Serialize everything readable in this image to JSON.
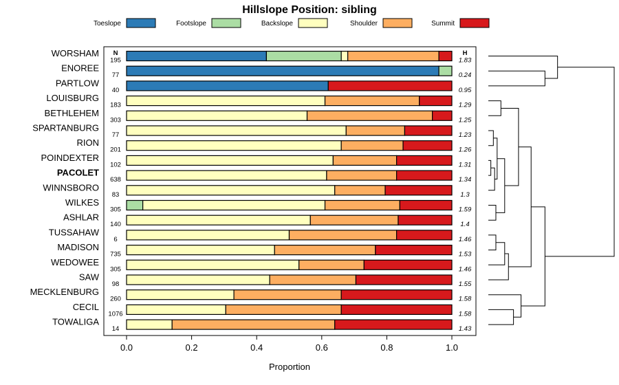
{
  "chart_data": {
    "type": "bar",
    "orientation": "horizontal",
    "stacked": true,
    "title": "Hillslope Position: sibling",
    "xlabel": "Proportion",
    "xlim": [
      0,
      1
    ],
    "xticks": [
      "0.0",
      "0.2",
      "0.4",
      "0.6",
      "0.8",
      "1.0"
    ],
    "n_header": "N",
    "h_header": "H",
    "highlight": "PACOLET",
    "legend": [
      {
        "name": "Toeslope",
        "color": "#2c7bb6"
      },
      {
        "name": "Footslope",
        "color": "#abdda4"
      },
      {
        "name": "Backslope",
        "color": "#ffffbf"
      },
      {
        "name": "Shoulder",
        "color": "#fdae61"
      },
      {
        "name": "Summit",
        "color": "#d7191c"
      }
    ],
    "categories": [
      "WORSHAM",
      "ENOREE",
      "PARTLOW",
      "LOUISBURG",
      "BETHLEHEM",
      "SPARTANBURG",
      "RION",
      "POINDEXTER",
      "PACOLET",
      "WINNSBORO",
      "WILKES",
      "ASHLAR",
      "TUSSAHAW",
      "MADISON",
      "WEDOWEE",
      "SAW",
      "MECKLENBURG",
      "CECIL",
      "TOWALIGA"
    ],
    "n": [
      "195",
      "77",
      "40",
      "183",
      "303",
      "77",
      "201",
      "102",
      "638",
      "83",
      "305",
      "140",
      "6",
      "735",
      "305",
      "98",
      "260",
      "1076",
      "14"
    ],
    "h": [
      "1.83",
      "0.24",
      "0.95",
      "1.29",
      "1.25",
      "1.23",
      "1.26",
      "1.31",
      "1.34",
      "1.3",
      "1.59",
      "1.4",
      "1.46",
      "1.53",
      "1.46",
      "1.55",
      "1.58",
      "1.58",
      "1.43"
    ],
    "series": [
      {
        "name": "Toeslope",
        "values": [
          0.43,
          0.96,
          0.62,
          0,
          0,
          0,
          0,
          0,
          0,
          0,
          0,
          0,
          0,
          0,
          0,
          0,
          0,
          0,
          0
        ]
      },
      {
        "name": "Footslope",
        "values": [
          0.23,
          0.04,
          0,
          0,
          0,
          0,
          0,
          0,
          0,
          0,
          0.05,
          0,
          0,
          0,
          0,
          0,
          0,
          0,
          0
        ]
      },
      {
        "name": "Backslope",
        "values": [
          0.02,
          0,
          0,
          0.61,
          0.555,
          0.675,
          0.66,
          0.635,
          0.615,
          0.64,
          0.56,
          0.565,
          0.5,
          0.455,
          0.53,
          0.44,
          0.33,
          0.305,
          0.14
        ]
      },
      {
        "name": "Shoulder",
        "values": [
          0.28,
          0,
          0,
          0.29,
          0.385,
          0.18,
          0.19,
          0.195,
          0.215,
          0.155,
          0.23,
          0.27,
          0.33,
          0.31,
          0.2,
          0.265,
          0.33,
          0.355,
          0.5
        ]
      },
      {
        "name": "Summit",
        "values": [
          0.04,
          0,
          0.38,
          0.1,
          0.06,
          0.145,
          0.15,
          0.17,
          0.17,
          0.205,
          0.16,
          0.165,
          0.17,
          0.235,
          0.27,
          0.295,
          0.34,
          0.34,
          0.36
        ]
      }
    ],
    "dendrogram": {
      "type": "hierarchical-clustering",
      "merges": [
        {
          "id": "m1",
          "left": "ENOREE",
          "right": "PARTLOW",
          "height": 0.45
        },
        {
          "id": "m2",
          "left": "WORSHAM",
          "right": "m1",
          "height": 0.55
        },
        {
          "id": "m3",
          "left": "LOUISBURG",
          "right": "BETHLEHEM",
          "height": 0.1
        },
        {
          "id": "m4",
          "left": "SPARTANBURG",
          "right": "RION",
          "height": 0.04
        },
        {
          "id": "m5",
          "left": "POINDEXTER",
          "right": "PACOLET",
          "height": 0.02
        },
        {
          "id": "m6",
          "left": "m5",
          "right": "WINNSBORO",
          "height": 0.05
        },
        {
          "id": "m7",
          "left": "m4",
          "right": "m6",
          "height": 0.07
        },
        {
          "id": "m8",
          "left": "WILKES",
          "right": "ASHLAR",
          "height": 0.06
        },
        {
          "id": "m9",
          "left": "m7",
          "right": "m8",
          "height": 0.13
        },
        {
          "id": "m10",
          "left": "m3",
          "right": "m9",
          "height": 0.24
        },
        {
          "id": "m11",
          "left": "TUSSAHAW",
          "right": "MADISON",
          "height": 0.06
        },
        {
          "id": "m12",
          "left": "m11",
          "right": "WEDOWEE",
          "height": 0.13
        },
        {
          "id": "m13",
          "left": "m12",
          "right": "SAW",
          "height": 0.16
        },
        {
          "id": "m14",
          "left": "m10",
          "right": "m13",
          "height": 0.34
        },
        {
          "id": "m15",
          "left": "CECIL",
          "right": "TOWALIGA",
          "height": 0.2
        },
        {
          "id": "m16",
          "left": "MECKLENBURG",
          "right": "m15",
          "height": 0.26
        },
        {
          "id": "m17",
          "left": "m14",
          "right": "m16",
          "height": 0.45
        },
        {
          "id": "m18",
          "left": "m2",
          "right": "m17",
          "height": 1.0
        }
      ]
    }
  }
}
